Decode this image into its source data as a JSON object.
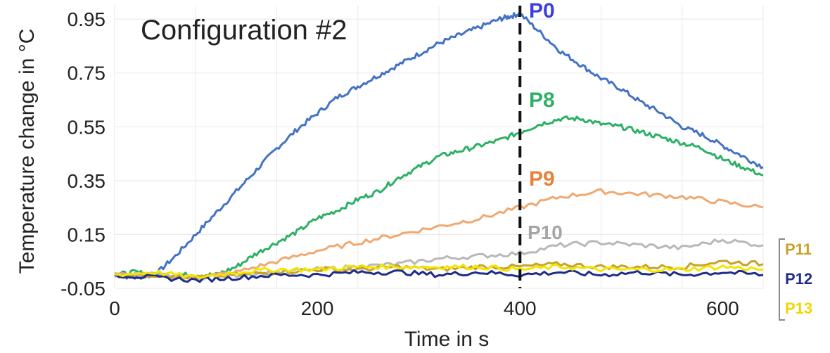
{
  "chart_data": {
    "type": "line",
    "title": "Configuration #2",
    "xlabel": "Time in s",
    "ylabel": "Temperature change in °C",
    "xlim": [
      0,
      640
    ],
    "ylim": [
      -0.05,
      1.0
    ],
    "x_ticks": [
      0,
      200,
      400,
      600
    ],
    "x_tick_labels": [
      "0",
      "200",
      "400",
      "600"
    ],
    "y_ticks": [
      -0.05,
      0.15,
      0.35,
      0.55,
      0.75,
      0.95
    ],
    "y_tick_labels": [
      "-0.05",
      "0.15",
      "0.35",
      "0.55",
      "0.75",
      "0.95"
    ],
    "grid": true,
    "marker_line": {
      "x": 400,
      "style": "dashed",
      "color": "#111111"
    },
    "series": [
      {
        "name": "P0",
        "color": "#4472C4",
        "label_color": "#3b3fe0",
        "x": [
          0,
          20,
          40,
          60,
          80,
          100,
          120,
          140,
          160,
          180,
          200,
          220,
          240,
          260,
          280,
          300,
          320,
          340,
          360,
          380,
          390,
          400,
          420,
          440,
          460,
          480,
          500,
          520,
          540,
          560,
          580,
          600,
          620,
          640
        ],
        "y": [
          0.0,
          -0.01,
          0.0,
          0.07,
          0.15,
          0.23,
          0.31,
          0.39,
          0.47,
          0.54,
          0.6,
          0.66,
          0.7,
          0.74,
          0.78,
          0.82,
          0.86,
          0.89,
          0.92,
          0.95,
          0.96,
          0.97,
          0.9,
          0.83,
          0.78,
          0.73,
          0.69,
          0.64,
          0.6,
          0.55,
          0.52,
          0.48,
          0.44,
          0.4
        ]
      },
      {
        "name": "P8",
        "color": "#2EB067",
        "label_color": "#2eb067",
        "x": [
          0,
          20,
          40,
          60,
          80,
          100,
          120,
          140,
          160,
          180,
          200,
          220,
          240,
          260,
          280,
          300,
          320,
          340,
          360,
          380,
          400,
          420,
          440,
          460,
          480,
          500,
          520,
          540,
          560,
          580,
          600,
          620,
          640
        ],
        "y": [
          0.0,
          0.01,
          0.0,
          0.0,
          0.0,
          0.0,
          0.03,
          0.08,
          0.12,
          0.16,
          0.21,
          0.24,
          0.28,
          0.31,
          0.36,
          0.4,
          0.44,
          0.46,
          0.48,
          0.5,
          0.53,
          0.56,
          0.58,
          0.58,
          0.56,
          0.55,
          0.53,
          0.51,
          0.49,
          0.47,
          0.43,
          0.4,
          0.37
        ]
      },
      {
        "name": "P9",
        "color": "#F0A870",
        "label_color": "#e8823a",
        "x": [
          0,
          40,
          80,
          120,
          160,
          200,
          240,
          280,
          320,
          360,
          400,
          440,
          480,
          520,
          560,
          600,
          640
        ],
        "y": [
          0.0,
          0.0,
          -0.01,
          0.01,
          0.05,
          0.09,
          0.12,
          0.15,
          0.18,
          0.21,
          0.25,
          0.29,
          0.31,
          0.3,
          0.29,
          0.27,
          0.25
        ]
      },
      {
        "name": "P10",
        "color": "#B8B8B8",
        "label_color": "#a6a6a6",
        "x": [
          0,
          40,
          80,
          120,
          160,
          200,
          240,
          280,
          320,
          360,
          400,
          440,
          480,
          520,
          560,
          600,
          640
        ],
        "y": [
          0.0,
          0.0,
          -0.01,
          0.0,
          0.01,
          0.02,
          0.03,
          0.04,
          0.06,
          0.07,
          0.08,
          0.11,
          0.12,
          0.11,
          0.1,
          0.13,
          0.11
        ]
      },
      {
        "name": "P11",
        "color": "#C9A227",
        "label_color": "#c9a227",
        "x": [
          0,
          40,
          80,
          120,
          160,
          200,
          240,
          280,
          320,
          360,
          400,
          440,
          480,
          520,
          560,
          600,
          640
        ],
        "y": [
          0.0,
          0.0,
          -0.01,
          0.0,
          0.01,
          0.02,
          0.02,
          0.03,
          0.02,
          0.03,
          0.03,
          0.04,
          0.03,
          0.03,
          0.03,
          0.05,
          0.04
        ]
      },
      {
        "name": "P12",
        "color": "#1F2D8A",
        "label_color": "#1f2d8a",
        "x": [
          0,
          40,
          80,
          120,
          160,
          200,
          240,
          280,
          320,
          360,
          400,
          440,
          480,
          520,
          560,
          600,
          640
        ],
        "y": [
          0.0,
          -0.01,
          -0.02,
          -0.01,
          0.0,
          0.0,
          0.01,
          0.01,
          0.0,
          0.01,
          0.0,
          0.01,
          0.0,
          0.01,
          0.0,
          0.01,
          0.0
        ]
      },
      {
        "name": "P13",
        "color": "#F2E600",
        "label_color": "#f2d600",
        "x": [
          0,
          40,
          80,
          120,
          160,
          200,
          240,
          280,
          320,
          360,
          400,
          440,
          480,
          520,
          560,
          600,
          640
        ],
        "y": [
          0.0,
          0.01,
          -0.01,
          0.01,
          0.02,
          0.02,
          0.03,
          0.03,
          0.03,
          0.03,
          0.02,
          0.03,
          0.02,
          0.02,
          0.02,
          0.03,
          0.02
        ]
      }
    ]
  }
}
